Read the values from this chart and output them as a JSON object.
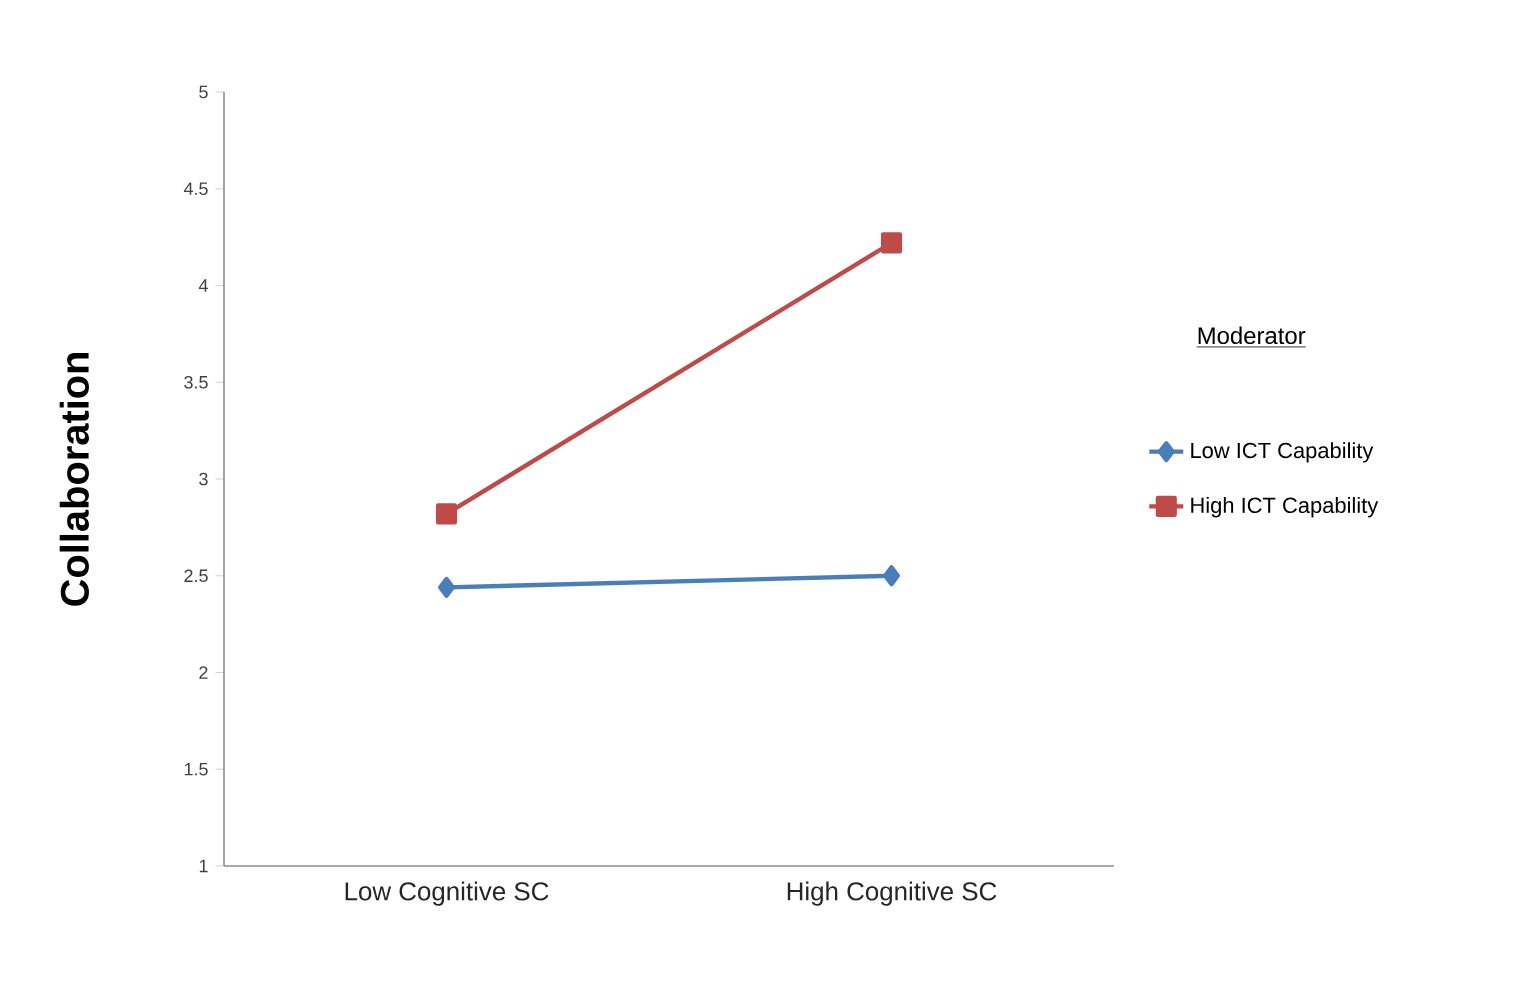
{
  "chart_data": {
    "type": "line",
    "ylabel": "Collaboration",
    "legend_title": "Moderator",
    "categories": [
      "Low Cognitive SC",
      "High Cognitive SC"
    ],
    "series": [
      {
        "name": "Low ICT Capability",
        "color": "#4a7ebb",
        "marker": "diamond",
        "values": [
          2.44,
          2.5
        ]
      },
      {
        "name": "High ICT Capability",
        "color": "#be4b48",
        "marker": "square",
        "values": [
          2.82,
          4.22
        ]
      }
    ],
    "ylim": [
      1,
      5
    ],
    "yticks": [
      1,
      1.5,
      2,
      2.5,
      3,
      3.5,
      4,
      4.5,
      5
    ],
    "grid": false,
    "legend": "right"
  }
}
